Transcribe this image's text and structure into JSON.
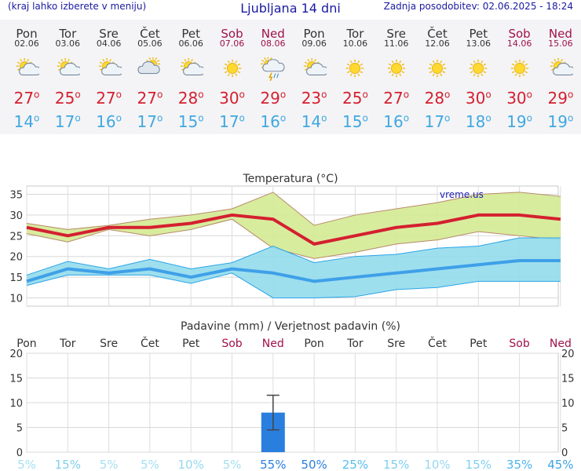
{
  "header": {
    "menu_hint": "(kraj lahko izberete v meniju)",
    "title": "Ljubljana 14 dni",
    "updated": "Zadnja posodobitev: 02.06.2025 - 18:24"
  },
  "colors": {
    "tmax": "#d42030",
    "tmin": "#40a8e0",
    "weekend": "#a0104a",
    "rain_bar": "#2a7fde"
  },
  "days": [
    {
      "name": "Pon",
      "date": "02.06",
      "weekend": false,
      "icon": "sun-cloud-icon",
      "tmax": "27",
      "tmin": "14"
    },
    {
      "name": "Tor",
      "date": "03.06",
      "weekend": false,
      "icon": "sun-cloud-icon",
      "tmax": "25",
      "tmin": "17"
    },
    {
      "name": "Sre",
      "date": "04.06",
      "weekend": false,
      "icon": "sun-cloud-icon",
      "tmax": "27",
      "tmin": "16"
    },
    {
      "name": "Čet",
      "date": "05.06",
      "weekend": false,
      "icon": "cloudy-sun-icon",
      "tmax": "27",
      "tmin": "17"
    },
    {
      "name": "Pet",
      "date": "06.06",
      "weekend": false,
      "icon": "sun-cloud-icon",
      "tmax": "28",
      "tmin": "15"
    },
    {
      "name": "Sob",
      "date": "07.06",
      "weekend": true,
      "icon": "sun-icon",
      "tmax": "30",
      "tmin": "17"
    },
    {
      "name": "Ned",
      "date": "08.06",
      "weekend": true,
      "icon": "thunderstorm-icon",
      "tmax": "29",
      "tmin": "16"
    },
    {
      "name": "Pon",
      "date": "09.06",
      "weekend": false,
      "icon": "sun-cloud-icon",
      "tmax": "23",
      "tmin": "14"
    },
    {
      "name": "Tor",
      "date": "10.06",
      "weekend": false,
      "icon": "sun-icon",
      "tmax": "25",
      "tmin": "15"
    },
    {
      "name": "Sre",
      "date": "11.06",
      "weekend": false,
      "icon": "sun-icon",
      "tmax": "27",
      "tmin": "16"
    },
    {
      "name": "Čet",
      "date": "12.06",
      "weekend": false,
      "icon": "sun-icon",
      "tmax": "28",
      "tmin": "17"
    },
    {
      "name": "Pet",
      "date": "13.06",
      "weekend": false,
      "icon": "sun-icon",
      "tmax": "30",
      "tmin": "18"
    },
    {
      "name": "Sob",
      "date": "14.06",
      "weekend": true,
      "icon": "sun-icon",
      "tmax": "30",
      "tmin": "19"
    },
    {
      "name": "Ned",
      "date": "15.06",
      "weekend": true,
      "icon": "sun-cloud-icon",
      "tmax": "29",
      "tmin": "19"
    }
  ],
  "chart_data": [
    {
      "type": "line",
      "title": "Temperatura (°C)",
      "watermark": "vreme.us",
      "ylim": [
        8,
        37
      ],
      "yticks": [
        10,
        15,
        20,
        25,
        30,
        35
      ],
      "grid": true,
      "series": [
        {
          "values": [
            27,
            25,
            27,
            27,
            28,
            30,
            29,
            23,
            25,
            27,
            28,
            30,
            30,
            29
          ]
        },
        {
          "values": [
            14,
            17,
            16,
            17,
            15,
            17,
            16,
            14,
            15,
            16,
            17,
            18,
            19,
            19
          ]
        }
      ],
      "bands": [
        {
          "upper": [
            28,
            26.5,
            27.5,
            29,
            30,
            31.5,
            35.5,
            27.5,
            30,
            31.5,
            33,
            35,
            35.5,
            34.5
          ],
          "lower": [
            25.5,
            23.5,
            26.5,
            25,
            26.5,
            29,
            22,
            19.5,
            21,
            23,
            24,
            26,
            25,
            24
          ]
        },
        {
          "upper": [
            15.5,
            18.8,
            17,
            19.3,
            17,
            18.5,
            22.5,
            18.5,
            20,
            20.5,
            22,
            22.5,
            24.5,
            24.5
          ],
          "lower": [
            13,
            15.5,
            15.5,
            15.5,
            13.5,
            16,
            10,
            10,
            10.3,
            12,
            12.5,
            14,
            14,
            14
          ]
        }
      ]
    },
    {
      "type": "bar",
      "title": "Padavine (mm) / Verjetnost padavin (%)",
      "categories": [
        "Pon",
        "Tor",
        "Sre",
        "Čet",
        "Pet",
        "Sob",
        "Ned",
        "Pon",
        "Tor",
        "Sre",
        "Čet",
        "Pet",
        "Sob",
        "Ned"
      ],
      "values": [
        0,
        0,
        0,
        0,
        0,
        0,
        8,
        0,
        0,
        0,
        0,
        0,
        0,
        0
      ],
      "error_range": [
        [
          0,
          0
        ],
        [
          0,
          0
        ],
        [
          0,
          0
        ],
        [
          0,
          0
        ],
        [
          0,
          0
        ],
        [
          0,
          0
        ],
        [
          4.5,
          11.5
        ],
        [
          0,
          0
        ],
        [
          0,
          0
        ],
        [
          0,
          0
        ],
        [
          0,
          0
        ],
        [
          0,
          0
        ],
        [
          0,
          0
        ],
        [
          0,
          0
        ]
      ],
      "ylim": [
        0,
        20
      ],
      "yticks": [
        0,
        5,
        10,
        15,
        20
      ],
      "grid": true,
      "probability": [
        "5%",
        "15%",
        "5%",
        "5%",
        "10%",
        "5%",
        "55%",
        "50%",
        "25%",
        "15%",
        "10%",
        "15%",
        "35%",
        "45%"
      ],
      "probability_colors": [
        "#a6e0f2",
        "#80d0ee",
        "#a6e0f2",
        "#a6e0f2",
        "#96d8f0",
        "#a6e0f2",
        "#2a7fde",
        "#2a7fde",
        "#56bff0",
        "#80d0ee",
        "#96d8f0",
        "#80d0ee",
        "#4db4ec",
        "#3ca4e6"
      ]
    }
  ]
}
